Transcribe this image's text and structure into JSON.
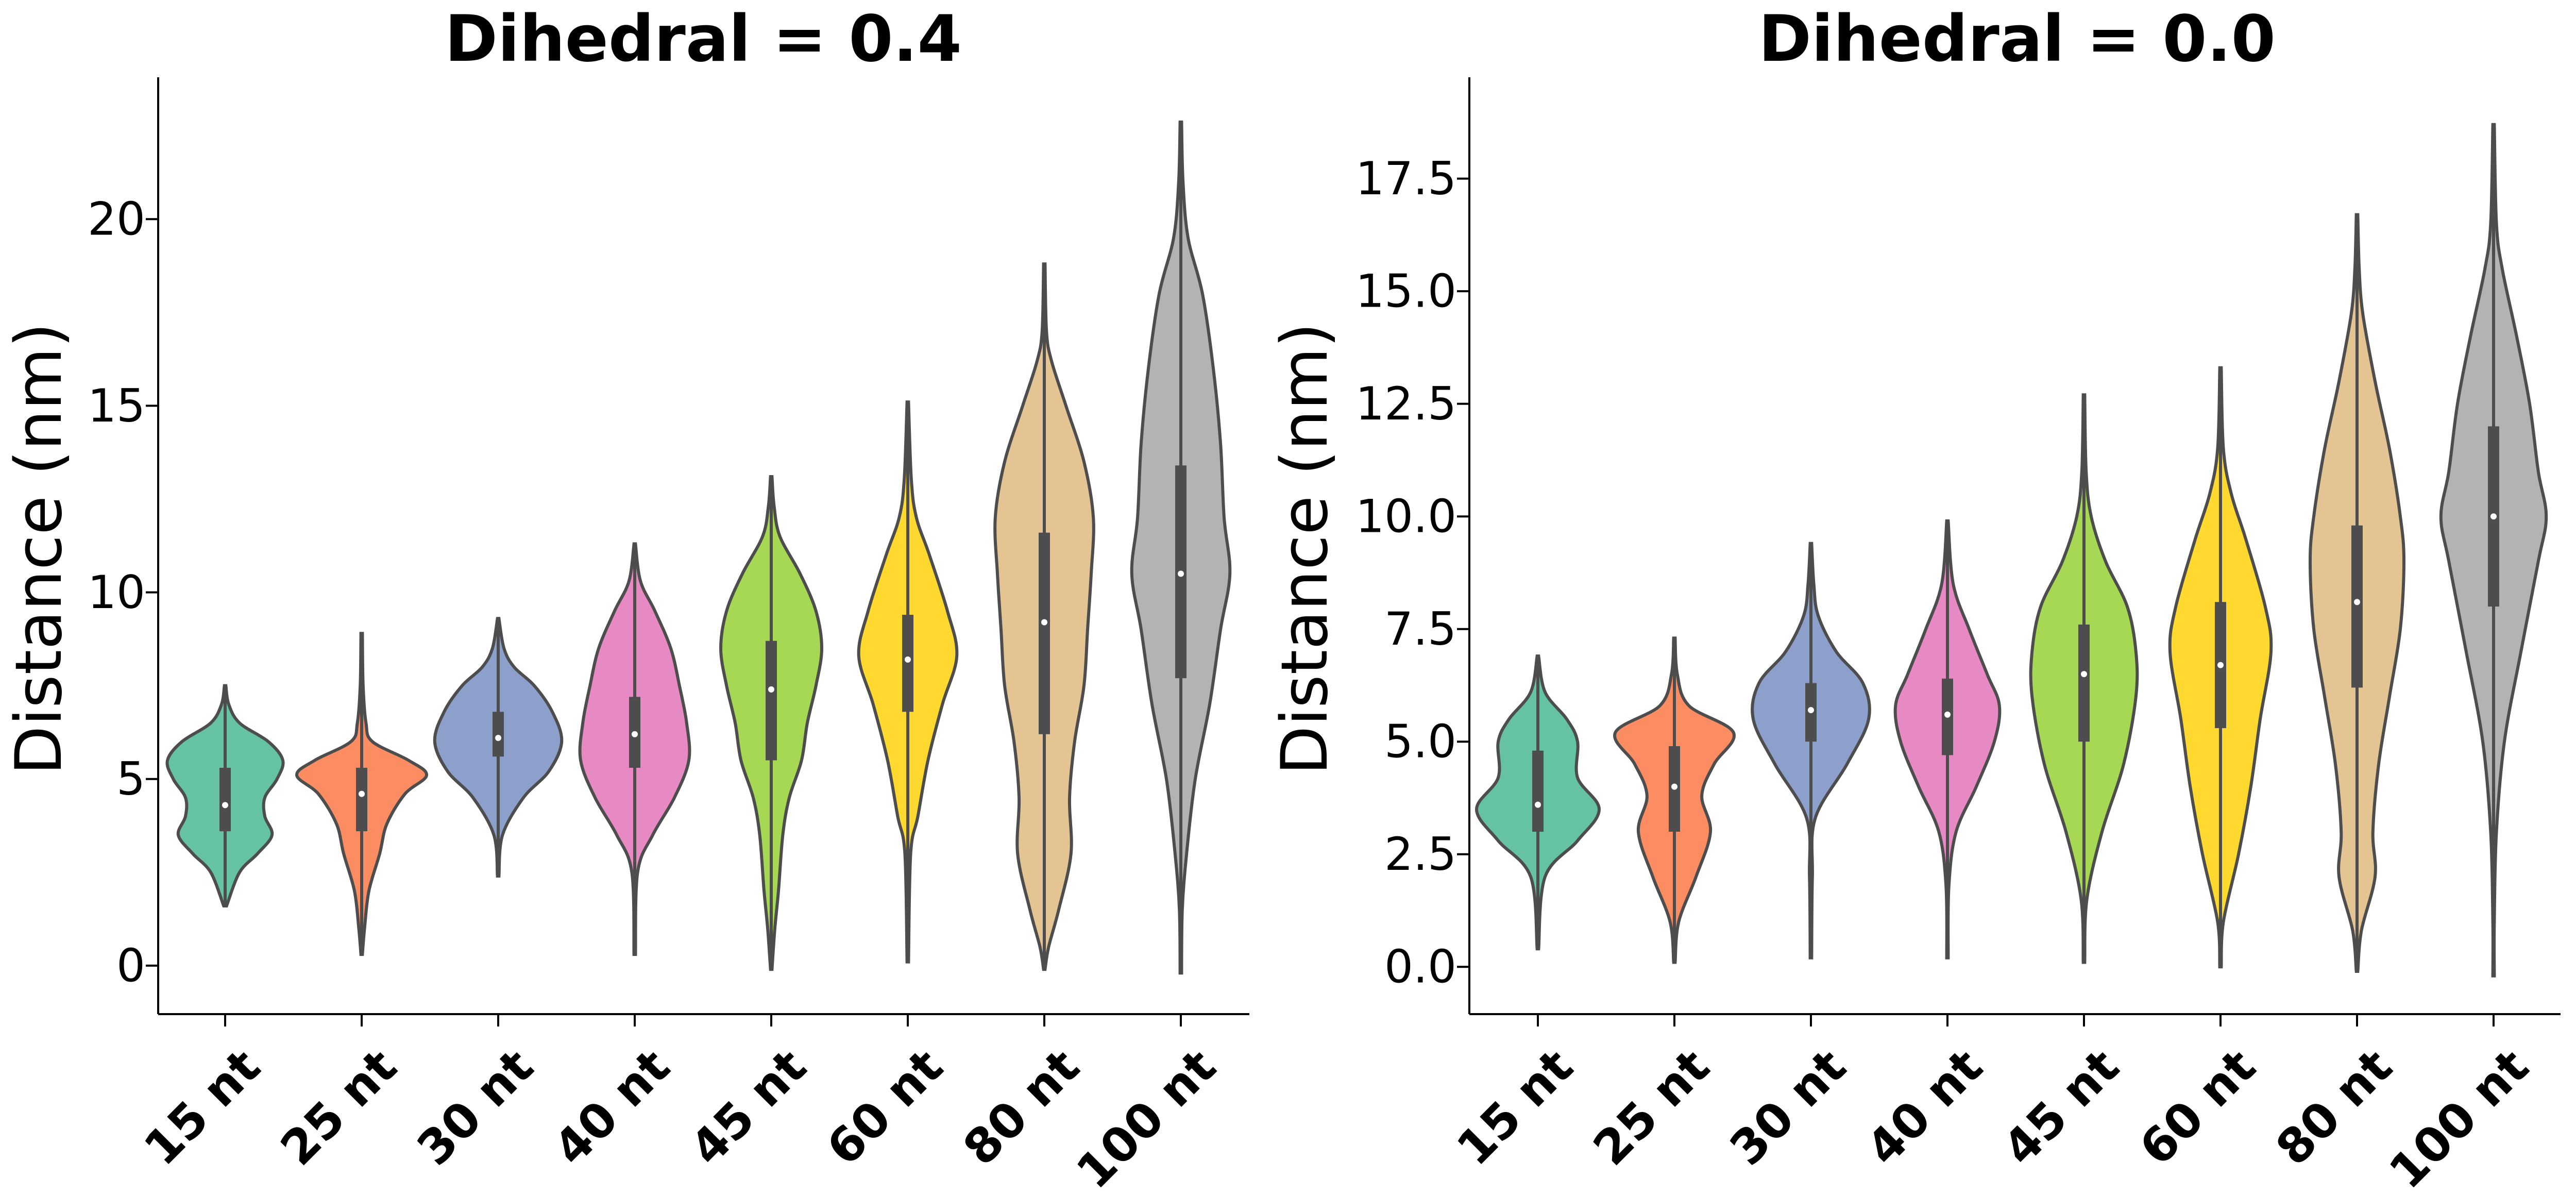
{
  "chart_data": [
    {
      "type": "violin",
      "title": "Dihedral = 0.4",
      "ylabel": "Distance (nm)",
      "xlabel": "",
      "ylim": [
        -1.3,
        23.8
      ],
      "yticks": [
        0,
        5,
        10,
        15,
        20
      ],
      "ytick_labels": [
        "0",
        "5",
        "10",
        "15",
        "20"
      ],
      "categories": [
        "15 nt",
        "25 nt",
        "30 nt",
        "40 nt",
        "45 nt",
        "60 nt",
        "80 nt",
        "100 nt"
      ],
      "colors": [
        "#66c2a5",
        "#fc8d62",
        "#8da0cb",
        "#e78ac3",
        "#a6d854",
        "#ffd92f",
        "#e5c494",
        "#b3b3b3"
      ],
      "violins": [
        {
          "min": 1.6,
          "max": 7.5,
          "q1": 3.6,
          "median": 4.3,
          "q3": 5.3,
          "profile": [
            [
              1.6,
              0.02
            ],
            [
              2.5,
              0.2
            ],
            [
              3.0,
              0.45
            ],
            [
              3.5,
              0.65
            ],
            [
              4.0,
              0.55
            ],
            [
              4.5,
              0.55
            ],
            [
              5.0,
              0.72
            ],
            [
              5.5,
              0.8
            ],
            [
              6.0,
              0.6
            ],
            [
              6.5,
              0.2
            ],
            [
              7.0,
              0.05
            ],
            [
              7.5,
              0.01
            ]
          ]
        },
        {
          "min": 0.3,
          "max": 8.9,
          "q1": 3.6,
          "median": 4.6,
          "q3": 5.3,
          "profile": [
            [
              0.3,
              0.01
            ],
            [
              1.0,
              0.04
            ],
            [
              2.0,
              0.1
            ],
            [
              3.0,
              0.25
            ],
            [
              3.8,
              0.35
            ],
            [
              4.6,
              0.6
            ],
            [
              5.1,
              0.9
            ],
            [
              5.5,
              0.65
            ],
            [
              6.0,
              0.15
            ],
            [
              6.5,
              0.06
            ],
            [
              7.5,
              0.02
            ],
            [
              8.9,
              0.01
            ]
          ]
        },
        {
          "min": 2.4,
          "max": 9.3,
          "q1": 5.6,
          "median": 6.1,
          "q3": 6.8,
          "profile": [
            [
              2.4,
              0.01
            ],
            [
              3.5,
              0.06
            ],
            [
              4.5,
              0.35
            ],
            [
              5.2,
              0.7
            ],
            [
              6.0,
              0.88
            ],
            [
              6.8,
              0.75
            ],
            [
              7.5,
              0.5
            ],
            [
              8.0,
              0.22
            ],
            [
              8.5,
              0.08
            ],
            [
              9.3,
              0.01
            ]
          ]
        },
        {
          "min": 0.3,
          "max": 11.3,
          "q1": 5.3,
          "median": 6.2,
          "q3": 7.2,
          "profile": [
            [
              0.3,
              0.01
            ],
            [
              2.5,
              0.04
            ],
            [
              3.5,
              0.25
            ],
            [
              4.5,
              0.55
            ],
            [
              5.5,
              0.75
            ],
            [
              6.5,
              0.72
            ],
            [
              7.5,
              0.62
            ],
            [
              8.5,
              0.5
            ],
            [
              9.5,
              0.28
            ],
            [
              10.3,
              0.08
            ],
            [
              11.3,
              0.01
            ]
          ]
        },
        {
          "min": -0.1,
          "max": 13.1,
          "q1": 5.5,
          "median": 7.4,
          "q3": 8.7,
          "profile": [
            [
              -0.1,
              0.01
            ],
            [
              1.0,
              0.05
            ],
            [
              2.0,
              0.1
            ],
            [
              3.5,
              0.16
            ],
            [
              4.5,
              0.25
            ],
            [
              5.5,
              0.42
            ],
            [
              6.5,
              0.5
            ],
            [
              7.5,
              0.62
            ],
            [
              8.5,
              0.7
            ],
            [
              9.5,
              0.62
            ],
            [
              10.5,
              0.4
            ],
            [
              11.5,
              0.12
            ],
            [
              12.3,
              0.04
            ],
            [
              13.1,
              0.01
            ]
          ]
        },
        {
          "min": 0.1,
          "max": 15.1,
          "q1": 6.8,
          "median": 8.2,
          "q3": 9.4,
          "profile": [
            [
              0.1,
              0.01
            ],
            [
              3.0,
              0.04
            ],
            [
              4.0,
              0.14
            ],
            [
              5.5,
              0.28
            ],
            [
              7.0,
              0.48
            ],
            [
              8.3,
              0.68
            ],
            [
              9.5,
              0.55
            ],
            [
              11.0,
              0.3
            ],
            [
              12.0,
              0.12
            ],
            [
              13.0,
              0.05
            ],
            [
              15.1,
              0.01
            ]
          ]
        },
        {
          "min": -0.1,
          "max": 18.8,
          "q1": 6.2,
          "median": 9.2,
          "q3": 11.6,
          "profile": [
            [
              -0.1,
              0.01
            ],
            [
              0.5,
              0.06
            ],
            [
              1.5,
              0.2
            ],
            [
              3.0,
              0.37
            ],
            [
              4.5,
              0.35
            ],
            [
              6.0,
              0.42
            ],
            [
              7.5,
              0.55
            ],
            [
              9.0,
              0.6
            ],
            [
              10.5,
              0.65
            ],
            [
              12.0,
              0.68
            ],
            [
              13.5,
              0.55
            ],
            [
              15.0,
              0.3
            ],
            [
              16.2,
              0.1
            ],
            [
              17.0,
              0.03
            ],
            [
              18.8,
              0.01
            ]
          ]
        },
        {
          "min": -0.2,
          "max": 22.6,
          "q1": 7.7,
          "median": 10.5,
          "q3": 13.4,
          "profile": [
            [
              -0.2,
              0.01
            ],
            [
              1.5,
              0.02
            ],
            [
              3.0,
              0.08
            ],
            [
              5.0,
              0.2
            ],
            [
              7.0,
              0.4
            ],
            [
              9.0,
              0.55
            ],
            [
              10.5,
              0.68
            ],
            [
              12.0,
              0.6
            ],
            [
              14.0,
              0.55
            ],
            [
              16.0,
              0.45
            ],
            [
              18.0,
              0.3
            ],
            [
              19.5,
              0.1
            ],
            [
              21.0,
              0.03
            ],
            [
              22.6,
              0.01
            ]
          ]
        }
      ]
    },
    {
      "type": "violin",
      "title": "Dihedral = 0.0",
      "ylabel": "Distance (nm)",
      "xlabel": "",
      "ylim": [
        -1.05,
        19.75
      ],
      "yticks": [
        0.0,
        2.5,
        5.0,
        7.5,
        10.0,
        12.5,
        15.0,
        17.5
      ],
      "ytick_labels": [
        "0.0",
        "2.5",
        "5.0",
        "7.5",
        "10.0",
        "12.5",
        "15.0",
        "17.5"
      ],
      "categories": [
        "15 nt",
        "25 nt",
        "30 nt",
        "40 nt",
        "45 nt",
        "60 nt",
        "80 nt",
        "100 nt"
      ],
      "colors": [
        "#66c2a5",
        "#fc8d62",
        "#8da0cb",
        "#e78ac3",
        "#a6d854",
        "#ffd92f",
        "#e5c494",
        "#b3b3b3"
      ],
      "violins": [
        {
          "min": 0.4,
          "max": 6.9,
          "q1": 3.0,
          "median": 3.6,
          "q3": 4.8,
          "profile": [
            [
              0.4,
              0.01
            ],
            [
              2.0,
              0.1
            ],
            [
              2.8,
              0.55
            ],
            [
              3.5,
              0.85
            ],
            [
              4.2,
              0.55
            ],
            [
              5.0,
              0.55
            ],
            [
              5.5,
              0.4
            ],
            [
              6.1,
              0.1
            ],
            [
              6.9,
              0.01
            ]
          ]
        },
        {
          "min": 0.1,
          "max": 7.3,
          "q1": 3.0,
          "median": 4.0,
          "q3": 4.9,
          "profile": [
            [
              0.1,
              0.01
            ],
            [
              1.0,
              0.06
            ],
            [
              2.0,
              0.3
            ],
            [
              3.0,
              0.5
            ],
            [
              3.8,
              0.38
            ],
            [
              4.5,
              0.55
            ],
            [
              5.2,
              0.82
            ],
            [
              5.8,
              0.2
            ],
            [
              6.5,
              0.04
            ],
            [
              7.3,
              0.01
            ]
          ]
        },
        {
          "min": 0.2,
          "max": 9.4,
          "q1": 5.0,
          "median": 5.7,
          "q3": 6.3,
          "profile": [
            [
              0.2,
              0.01
            ],
            [
              2.0,
              0.02
            ],
            [
              3.3,
              0.06
            ],
            [
              4.5,
              0.5
            ],
            [
              5.5,
              0.8
            ],
            [
              6.3,
              0.72
            ],
            [
              7.0,
              0.35
            ],
            [
              7.8,
              0.1
            ],
            [
              8.5,
              0.04
            ],
            [
              9.4,
              0.01
            ]
          ]
        },
        {
          "min": 0.2,
          "max": 9.9,
          "q1": 4.7,
          "median": 5.6,
          "q3": 6.4,
          "profile": [
            [
              0.2,
              0.01
            ],
            [
              1.8,
              0.02
            ],
            [
              3.0,
              0.12
            ],
            [
              4.0,
              0.4
            ],
            [
              5.0,
              0.65
            ],
            [
              5.8,
              0.72
            ],
            [
              6.5,
              0.55
            ],
            [
              7.5,
              0.3
            ],
            [
              8.5,
              0.08
            ],
            [
              9.9,
              0.01
            ]
          ]
        },
        {
          "min": 0.1,
          "max": 12.7,
          "q1": 5.0,
          "median": 6.5,
          "q3": 7.6,
          "profile": [
            [
              0.1,
              0.01
            ],
            [
              1.5,
              0.04
            ],
            [
              3.0,
              0.25
            ],
            [
              4.5,
              0.55
            ],
            [
              6.0,
              0.72
            ],
            [
              7.0,
              0.72
            ],
            [
              8.0,
              0.6
            ],
            [
              9.0,
              0.3
            ],
            [
              10.0,
              0.1
            ],
            [
              11.0,
              0.03
            ],
            [
              12.7,
              0.01
            ]
          ]
        },
        {
          "min": 0.0,
          "max": 13.3,
          "q1": 5.3,
          "median": 6.7,
          "q3": 8.1,
          "profile": [
            [
              0.0,
              0.01
            ],
            [
              1.0,
              0.04
            ],
            [
              2.5,
              0.25
            ],
            [
              4.0,
              0.42
            ],
            [
              5.5,
              0.55
            ],
            [
              7.0,
              0.7
            ],
            [
              8.0,
              0.62
            ],
            [
              9.5,
              0.35
            ],
            [
              10.5,
              0.15
            ],
            [
              11.5,
              0.04
            ],
            [
              13.3,
              0.01
            ]
          ]
        },
        {
          "min": -0.1,
          "max": 16.7,
          "q1": 6.2,
          "median": 8.1,
          "q3": 9.8,
          "profile": [
            [
              -0.1,
              0.01
            ],
            [
              0.8,
              0.06
            ],
            [
              2.0,
              0.25
            ],
            [
              3.0,
              0.22
            ],
            [
              4.5,
              0.3
            ],
            [
              6.0,
              0.45
            ],
            [
              7.5,
              0.6
            ],
            [
              9.0,
              0.65
            ],
            [
              10.0,
              0.6
            ],
            [
              11.5,
              0.45
            ],
            [
              13.0,
              0.25
            ],
            [
              14.5,
              0.08
            ],
            [
              15.5,
              0.03
            ],
            [
              16.7,
              0.01
            ]
          ]
        },
        {
          "min": -0.2,
          "max": 18.7,
          "q1": 8.0,
          "median": 10.0,
          "q3": 12.0,
          "profile": [
            [
              -0.2,
              0.01
            ],
            [
              1.0,
              0.01
            ],
            [
              3.0,
              0.04
            ],
            [
              5.0,
              0.15
            ],
            [
              7.0,
              0.38
            ],
            [
              9.0,
              0.62
            ],
            [
              10.0,
              0.73
            ],
            [
              11.0,
              0.62
            ],
            [
              12.5,
              0.5
            ],
            [
              14.0,
              0.32
            ],
            [
              15.5,
              0.12
            ],
            [
              16.5,
              0.04
            ],
            [
              18.7,
              0.01
            ]
          ]
        }
      ]
    }
  ]
}
